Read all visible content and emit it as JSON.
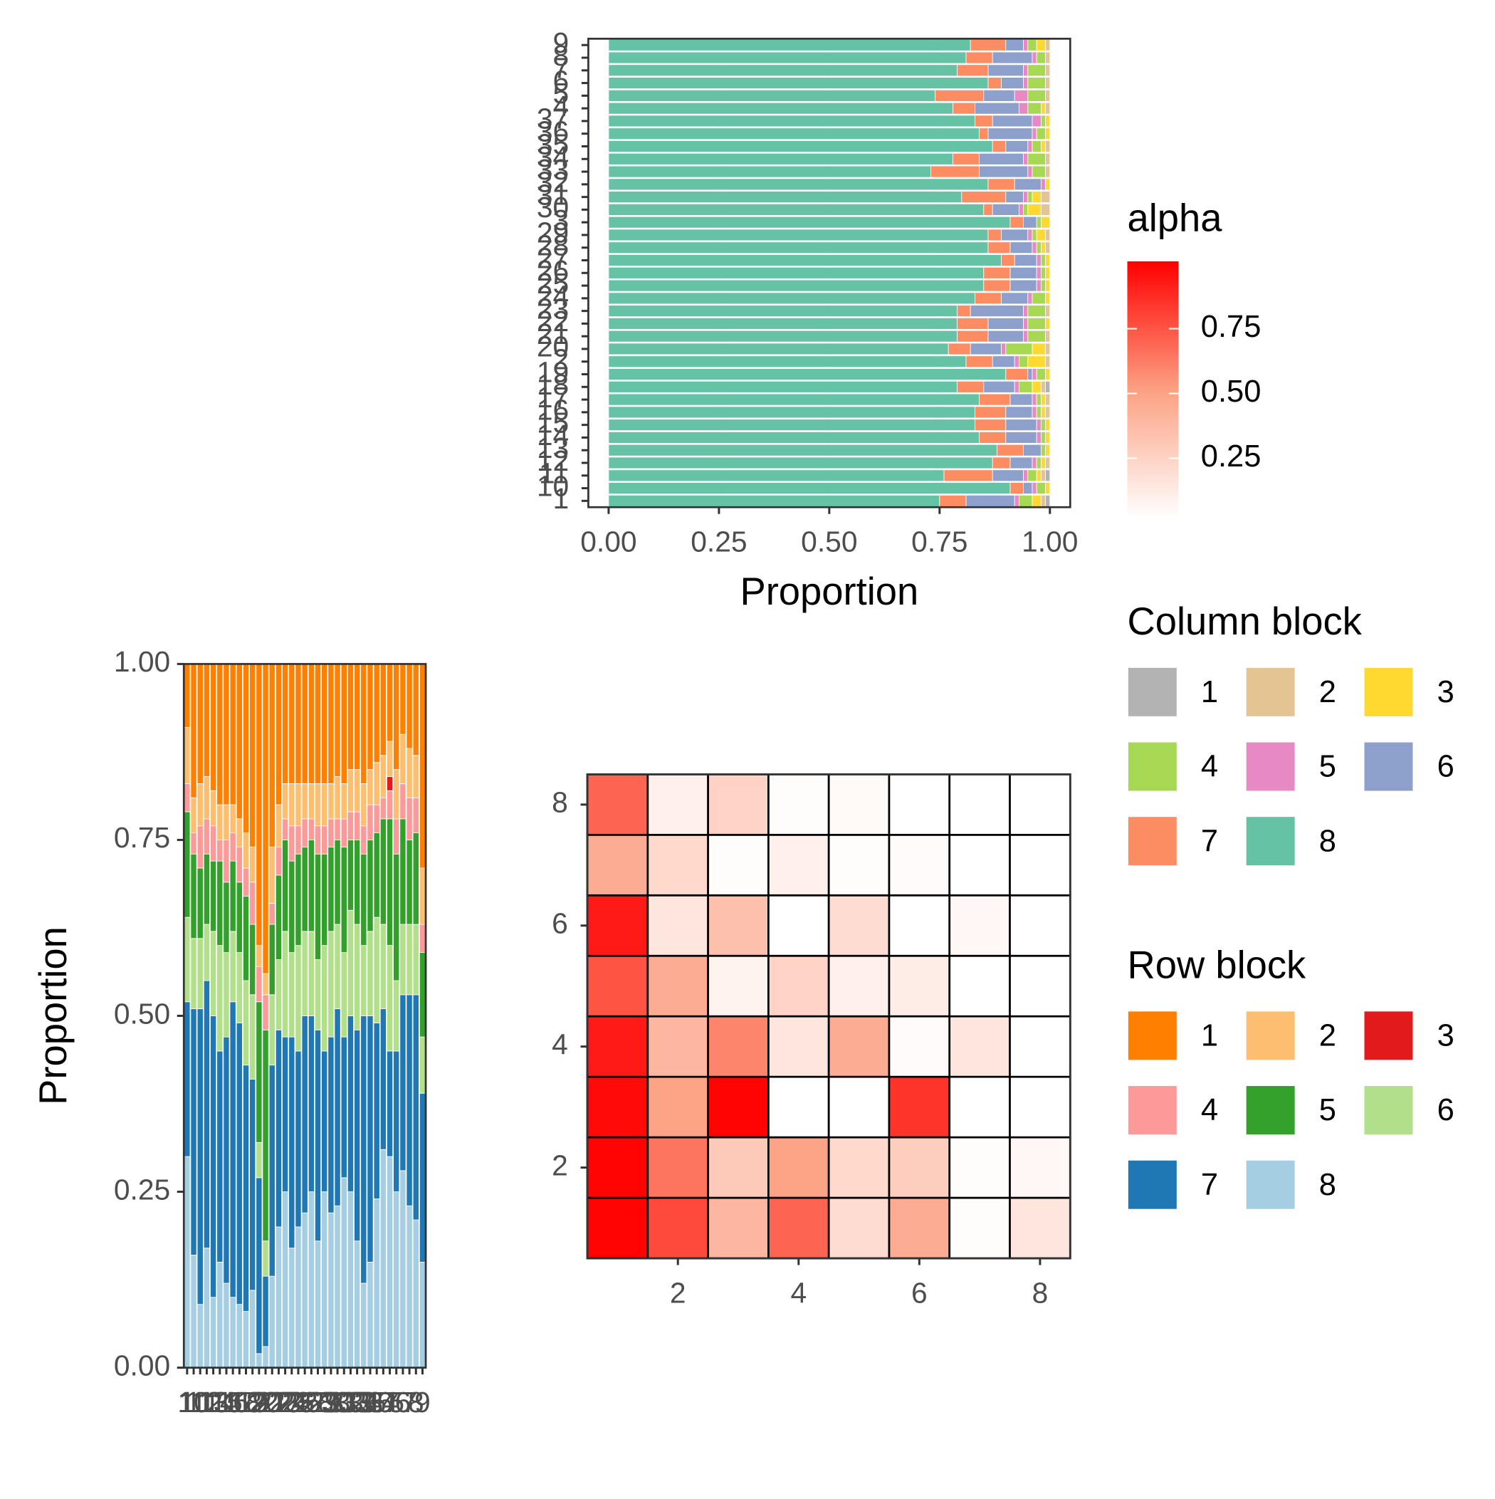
{
  "chart_data": [
    {
      "type": "bar",
      "orientation": "horizontal",
      "stacked": true,
      "xlabel": "Proportion",
      "legend_title": "Column block",
      "grid": true,
      "categories": [
        "1",
        "10",
        "11",
        "12",
        "13",
        "14",
        "15",
        "16",
        "17",
        "18",
        "19",
        "2",
        "20",
        "21",
        "22",
        "23",
        "24",
        "25",
        "26",
        "27",
        "28",
        "29",
        "3",
        "30",
        "31",
        "32",
        "33",
        "34",
        "35",
        "36",
        "37",
        "4",
        "5",
        "6",
        "7",
        "8",
        "9"
      ],
      "xlim": [
        -0.046,
        1.046
      ],
      "xticks": [
        {
          "value": 0,
          "label": "0.00"
        },
        {
          "value": 0.25,
          "label": "0.25"
        },
        {
          "value": 0.5,
          "label": "0.50"
        },
        {
          "value": 0.75,
          "label": "0.75"
        },
        {
          "value": 1,
          "label": "1.00"
        }
      ],
      "series": [
        {
          "name": "1",
          "color": "#b3b3b3",
          "values": [
            0.01,
            0,
            0.01,
            0,
            0,
            0,
            0,
            0,
            0,
            0.01,
            0,
            0,
            0,
            0,
            0,
            0,
            0,
            0,
            0,
            0,
            0,
            0,
            0,
            0,
            0,
            0,
            0,
            0,
            0,
            0,
            0,
            0,
            0,
            0,
            0,
            0,
            0
          ]
        },
        {
          "name": "2",
          "color": "#e5c494",
          "values": [
            0.01,
            0,
            0.01,
            0.01,
            0,
            0,
            0,
            0.01,
            0.01,
            0.01,
            0,
            0.01,
            0.01,
            0.01,
            0,
            0.01,
            0,
            0,
            0,
            0,
            0.01,
            0.01,
            0,
            0.02,
            0.02,
            0,
            0.01,
            0.01,
            0.01,
            0,
            0,
            0.01,
            0.01,
            0.01,
            0.01,
            0.01,
            0.01
          ]
        },
        {
          "name": "3",
          "color": "#ffd92f",
          "values": [
            0.02,
            0.01,
            0.01,
            0.01,
            0.01,
            0.01,
            0.01,
            0.01,
            0.01,
            0.02,
            0.01,
            0.04,
            0.03,
            0,
            0.01,
            0,
            0.01,
            0.01,
            0.01,
            0.01,
            0.01,
            0.02,
            0.02,
            0.03,
            0.02,
            0.01,
            0,
            0,
            0.01,
            0.01,
            0.01,
            0.01,
            0,
            0,
            0,
            0,
            0.02
          ]
        },
        {
          "name": "4",
          "color": "#a6d854",
          "values": [
            0.03,
            0.02,
            0.02,
            0.01,
            0.01,
            0.01,
            0.01,
            0.01,
            0.01,
            0.03,
            0.02,
            0.02,
            0.06,
            0.04,
            0.04,
            0.04,
            0.03,
            0.01,
            0.01,
            0.01,
            0.01,
            0.01,
            0.01,
            0.01,
            0.01,
            0,
            0.03,
            0.04,
            0.02,
            0.02,
            0.01,
            0.03,
            0.04,
            0.04,
            0.04,
            0.02,
            0.02
          ]
        },
        {
          "name": "5",
          "color": "#e78ac3",
          "values": [
            0.01,
            0.01,
            0.01,
            0.01,
            0,
            0.01,
            0.01,
            0.01,
            0.01,
            0.01,
            0.01,
            0.01,
            0.01,
            0.01,
            0.01,
            0.01,
            0.01,
            0.01,
            0.01,
            0.01,
            0.01,
            0.01,
            0,
            0.01,
            0.01,
            0.01,
            0.01,
            0.01,
            0.01,
            0.01,
            0.02,
            0.02,
            0.03,
            0.01,
            0.01,
            0.01,
            0.01
          ]
        },
        {
          "name": "6",
          "color": "#8da0cb",
          "values": [
            0.11,
            0.02,
            0.07,
            0.05,
            0.04,
            0.07,
            0.07,
            0.06,
            0.05,
            0.07,
            0.01,
            0.05,
            0.07,
            0.08,
            0.08,
            0.12,
            0.06,
            0.06,
            0.06,
            0.05,
            0.05,
            0.06,
            0.03,
            0.06,
            0.04,
            0.06,
            0.11,
            0.1,
            0.05,
            0.1,
            0.09,
            0.1,
            0.07,
            0.05,
            0.08,
            0.09,
            0.04
          ]
        },
        {
          "name": "7",
          "color": "#fc8d62",
          "values": [
            0.06,
            0.03,
            0.11,
            0.04,
            0.06,
            0.06,
            0.07,
            0.07,
            0.07,
            0.06,
            0.05,
            0.06,
            0.05,
            0.07,
            0.07,
            0.03,
            0.06,
            0.06,
            0.06,
            0.03,
            0.05,
            0.03,
            0.03,
            0.02,
            0.1,
            0.06,
            0.11,
            0.06,
            0.03,
            0.02,
            0.04,
            0.05,
            0.11,
            0.03,
            0.07,
            0.06,
            0.08
          ]
        },
        {
          "name": "8",
          "color": "#66c2a5",
          "values": [
            0.75,
            0.91,
            0.76,
            0.87,
            0.88,
            0.84,
            0.83,
            0.83,
            0.84,
            0.79,
            0.9,
            0.81,
            0.77,
            0.79,
            0.79,
            0.79,
            0.83,
            0.85,
            0.85,
            0.89,
            0.86,
            0.86,
            0.91,
            0.85,
            0.8,
            0.86,
            0.73,
            0.78,
            0.87,
            0.84,
            0.83,
            0.78,
            0.74,
            0.86,
            0.79,
            0.81,
            0.82
          ]
        }
      ]
    },
    {
      "type": "bar",
      "orientation": "vertical",
      "stacked": true,
      "ylabel": "Proportion",
      "legend_title": "Row block",
      "categories": [
        "1",
        "10",
        "11",
        "12",
        "13",
        "14",
        "15",
        "16",
        "17",
        "18",
        "19",
        "2",
        "20",
        "21",
        "22",
        "23",
        "24",
        "25",
        "26",
        "27",
        "28",
        "29",
        "3",
        "30",
        "31",
        "32",
        "33",
        "34",
        "35",
        "36",
        "37",
        "4",
        "5",
        "6",
        "7",
        "8",
        "9"
      ],
      "ylim": [
        0,
        1
      ],
      "yticks": [
        {
          "value": 0,
          "label": "0.00"
        },
        {
          "value": 0.25,
          "label": "0.25"
        },
        {
          "value": 0.5,
          "label": "0.50"
        },
        {
          "value": 0.75,
          "label": "0.75"
        },
        {
          "value": 1,
          "label": "1.00"
        }
      ],
      "series": [
        {
          "name": "1",
          "color": "#ff7f00",
          "values": [
            0.09,
            0.19,
            0.17,
            0.16,
            0.18,
            0.2,
            0.2,
            0.2,
            0.22,
            0.24,
            0.26,
            0.4,
            0.44,
            0.26,
            0.2,
            0.17,
            0.17,
            0.17,
            0.17,
            0.17,
            0.17,
            0.17,
            0.17,
            0.16,
            0.17,
            0.15,
            0.15,
            0.17,
            0.15,
            0.14,
            0.13,
            0.11,
            0.15,
            0.1,
            0.12,
            0.13,
            0.29
          ]
        },
        {
          "name": "2",
          "color": "#fdbf6f",
          "values": [
            0.08,
            0.05,
            0.06,
            0.06,
            0.05,
            0.05,
            0.05,
            0.04,
            0.04,
            0.05,
            0.05,
            0.03,
            0.03,
            0.08,
            0.06,
            0.05,
            0.06,
            0.06,
            0.05,
            0.05,
            0.06,
            0.06,
            0.05,
            0.06,
            0.05,
            0.06,
            0.06,
            0.06,
            0.05,
            0.06,
            0.06,
            0.05,
            0.07,
            0.07,
            0.07,
            0.06,
            0.08
          ]
        },
        {
          "name": "3",
          "color": "#e31a1c",
          "values": [
            0,
            0,
            0,
            0,
            0,
            0,
            0,
            0,
            0,
            0,
            0,
            0,
            0,
            0,
            0,
            0,
            0,
            0,
            0,
            0,
            0,
            0,
            0,
            0,
            0,
            0,
            0,
            0,
            0,
            0,
            0,
            0.02,
            0,
            0,
            0,
            0,
            0
          ]
        },
        {
          "name": "4",
          "color": "#fb9a99",
          "values": [
            0.04,
            0.03,
            0.06,
            0.05,
            0.05,
            0.03,
            0.06,
            0.04,
            0.05,
            0.04,
            0.06,
            0.05,
            0.05,
            0.03,
            0.04,
            0.03,
            0.05,
            0.04,
            0.04,
            0.03,
            0.04,
            0.04,
            0.04,
            0.03,
            0.04,
            0.04,
            0.04,
            0.04,
            0.05,
            0.04,
            0.03,
            0.04,
            0.05,
            0.05,
            0.06,
            0.05,
            0.04
          ]
        },
        {
          "name": "5",
          "color": "#33a02c",
          "values": [
            0.15,
            0.12,
            0.1,
            0.1,
            0.1,
            0.12,
            0.1,
            0.1,
            0.1,
            0.12,
            0.1,
            0.2,
            0.3,
            0.1,
            0.12,
            0.13,
            0.13,
            0.13,
            0.12,
            0.13,
            0.15,
            0.13,
            0.12,
            0.12,
            0.15,
            0.1,
            0.12,
            0.13,
            0.13,
            0.12,
            0.15,
            0.18,
            0.18,
            0.15,
            0.12,
            0.13,
            0.12
          ]
        },
        {
          "name": "6",
          "color": "#b2df8a",
          "values": [
            0.12,
            0.1,
            0.1,
            0.08,
            0.12,
            0.15,
            0.12,
            0.1,
            0.1,
            0.12,
            0.12,
            0.05,
            0.05,
            0.1,
            0.1,
            0.15,
            0.12,
            0.15,
            0.12,
            0.12,
            0.1,
            0.15,
            0.15,
            0.12,
            0.12,
            0.15,
            0.15,
            0.1,
            0.12,
            0.15,
            0.12,
            0.15,
            0.1,
            0.1,
            0.1,
            0.1,
            0.08
          ]
        },
        {
          "name": "7",
          "color": "#1f78b4",
          "values": [
            0.22,
            0.35,
            0.42,
            0.38,
            0.4,
            0.3,
            0.35,
            0.42,
            0.4,
            0.35,
            0.3,
            0.25,
            0.1,
            0.3,
            0.28,
            0.22,
            0.3,
            0.25,
            0.28,
            0.25,
            0.3,
            0.2,
            0.25,
            0.28,
            0.2,
            0.25,
            0.3,
            0.38,
            0.35,
            0.25,
            0.2,
            0.15,
            0.2,
            0.25,
            0.3,
            0.32,
            0.24
          ]
        },
        {
          "name": "8",
          "color": "#a6cee3",
          "values": [
            0.3,
            0.16,
            0.09,
            0.17,
            0.1,
            0.15,
            0.12,
            0.1,
            0.09,
            0.08,
            0.11,
            0.02,
            0.03,
            0.13,
            0.2,
            0.25,
            0.17,
            0.2,
            0.22,
            0.25,
            0.18,
            0.25,
            0.22,
            0.23,
            0.27,
            0.25,
            0.18,
            0.12,
            0.15,
            0.24,
            0.31,
            0.3,
            0.25,
            0.28,
            0.23,
            0.21,
            0.15
          ]
        }
      ]
    },
    {
      "type": "heatmap",
      "x": [
        1,
        2,
        3,
        4,
        5,
        6,
        7,
        8
      ],
      "y": [
        1,
        2,
        3,
        4,
        5,
        6,
        7,
        8
      ],
      "xlim": [
        0.5,
        8.5
      ],
      "ylim": [
        8.5,
        0.5
      ],
      "xticks": [
        2,
        4,
        6,
        8
      ],
      "yticks": [
        2,
        4,
        6,
        8
      ],
      "values": [
        [
          1.0,
          0.78,
          0.4,
          0.7,
          0.2,
          0.45,
          0.03,
          0.15
        ],
        [
          1.0,
          0.65,
          0.3,
          0.5,
          0.22,
          0.28,
          0.03,
          0.06
        ],
        [
          0.98,
          0.5,
          1.0,
          0.01,
          0.02,
          0.85,
          0,
          0
        ],
        [
          0.93,
          0.4,
          0.6,
          0.15,
          0.45,
          0.04,
          0.15,
          0.02
        ],
        [
          0.75,
          0.45,
          0.08,
          0.25,
          0.1,
          0.12,
          0,
          0.02
        ],
        [
          0.93,
          0.15,
          0.35,
          0.02,
          0.2,
          0.01,
          0.06,
          0
        ],
        [
          0.45,
          0.22,
          0.03,
          0.1,
          0.03,
          0.04,
          0,
          0
        ],
        [
          0.7,
          0.1,
          0.25,
          0.03,
          0.05,
          0.01,
          0.02,
          0
        ]
      ],
      "colorbar": {
        "title": "alpha",
        "lim": [
          0.02,
          1.01
        ],
        "ticks": [
          0.25,
          {
            "value": 0.5,
            "label": "0.50"
          },
          0.75
        ],
        "colors": [
          "#ffffff",
          "#fca082",
          "#ff0000"
        ]
      }
    }
  ]
}
